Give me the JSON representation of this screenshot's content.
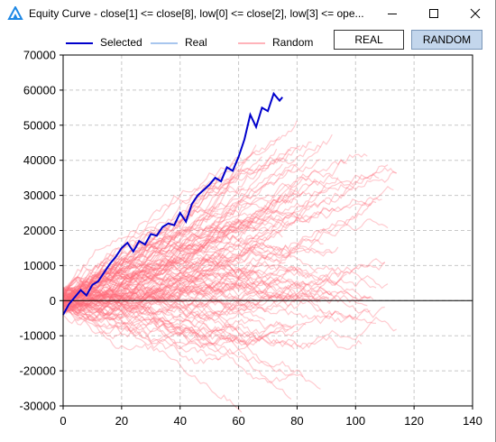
{
  "window": {
    "title": "Equity Curve - close[1] <= close[8], low[0] <= close[2], low[3] <= ope...",
    "controls": [
      "minimize-icon",
      "maximize-icon",
      "close-icon"
    ]
  },
  "legend": {
    "selected_label": "Selected",
    "real_label": "Real",
    "random_label": "Random"
  },
  "toggle": {
    "real_label": "REAL",
    "random_label": "RANDOM",
    "active": "RANDOM"
  },
  "colors": {
    "selected": "#0000cc",
    "real": "#a8c6ee",
    "random": "#ff6a78",
    "toggle_active_bg": "#c3d6ec"
  },
  "chart_data": {
    "type": "line",
    "title": "",
    "xlabel": "",
    "ylabel": "",
    "xlim": [
      0,
      140
    ],
    "ylim": [
      -30000,
      70000
    ],
    "x_ticks": [
      0,
      20,
      40,
      60,
      80,
      100,
      120,
      140
    ],
    "y_ticks": [
      -30000,
      -20000,
      -10000,
      0,
      10000,
      20000,
      30000,
      40000,
      50000,
      60000,
      70000
    ],
    "x_tick_labels": [
      "0",
      "20",
      "40",
      "60",
      "80",
      "100",
      "120",
      "140"
    ],
    "y_tick_labels": [
      "-30000",
      "-20000",
      "-10000",
      "0",
      "10000",
      "20000",
      "30000",
      "40000",
      "50000",
      "60000",
      "70000"
    ],
    "grid": true,
    "zero_line": true,
    "series": [
      {
        "name": "Selected",
        "color": "#0000cc",
        "x": [
          0,
          2,
          4,
          6,
          8,
          10,
          12,
          14,
          16,
          18,
          20,
          22,
          24,
          26,
          28,
          30,
          32,
          34,
          36,
          38,
          40,
          42,
          44,
          46,
          48,
          50,
          52,
          54,
          56,
          58,
          60,
          62,
          64,
          66,
          68,
          70,
          72,
          74,
          75
        ],
        "y": [
          -4000,
          -1000,
          1000,
          3000,
          1500,
          4500,
          5500,
          8000,
          10500,
          12500,
          15000,
          16500,
          14000,
          17000,
          16000,
          19000,
          18500,
          21000,
          22000,
          21500,
          25000,
          22500,
          27500,
          30000,
          31500,
          33000,
          35000,
          34000,
          38000,
          37000,
          41000,
          46000,
          53000,
          49500,
          55000,
          54000,
          59000,
          57000,
          58000
        ]
      },
      {
        "name": "Random",
        "color": "#ff6a78",
        "count": 120,
        "length_range": [
          50,
          115
        ],
        "final_value_range": [
          -20000,
          42000
        ]
      }
    ]
  }
}
